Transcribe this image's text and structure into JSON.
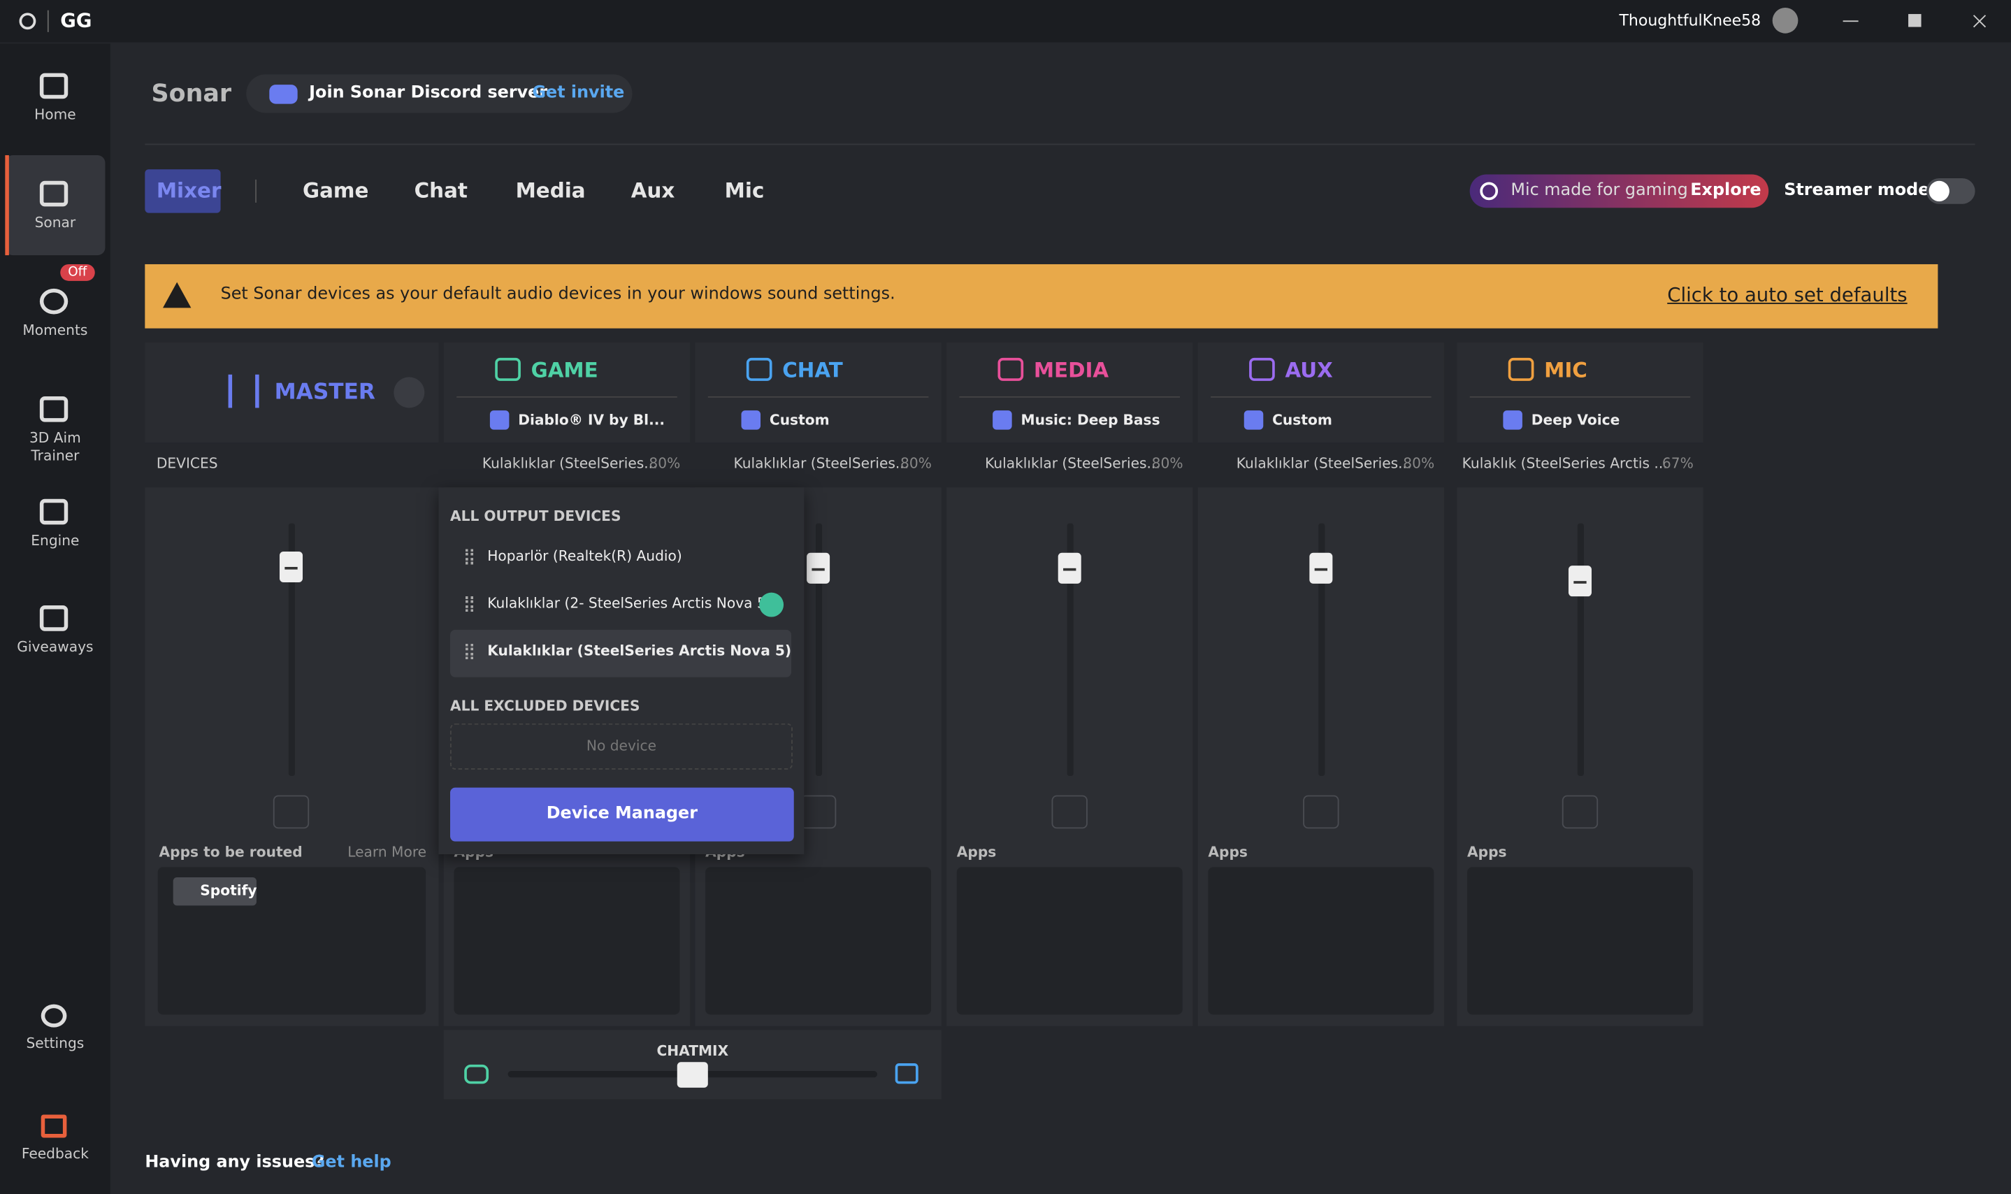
{
  "titlebar": {
    "logo": "GG",
    "username": "ThoughtfulKnee58"
  },
  "sidebar": {
    "items": [
      {
        "label": "Home"
      },
      {
        "label": "Sonar"
      },
      {
        "label": "Moments",
        "badge": "Off"
      },
      {
        "label": "3D Aim Trainer"
      },
      {
        "label": "Engine"
      },
      {
        "label": "Giveaways"
      }
    ],
    "bottom": [
      {
        "label": "Settings"
      },
      {
        "label": "Feedback"
      }
    ]
  },
  "header": {
    "title": "Sonar",
    "discord": "Join Sonar Discord server",
    "invite": "Get invite"
  },
  "tabs": [
    "Mixer",
    "Game",
    "Chat",
    "Media",
    "Aux",
    "Mic"
  ],
  "promo": {
    "text": "Mic made for gaming",
    "link": "Explore"
  },
  "streamer": "Streamer mode",
  "banner": {
    "text": "Set Sonar devices as your default audio devices in your windows sound settings.",
    "action": "Click to auto set defaults"
  },
  "master": {
    "title": "MASTER",
    "devices_label": "DEVICES",
    "apps_label": "Apps to be routed",
    "learn_more": "Learn More",
    "app": "Spotify"
  },
  "channels": [
    {
      "name": "GAME",
      "color": "#4fd1a5",
      "preset": "Diablo® IV by Bl...",
      "device": "Kulaklıklar (SteelSeries...",
      "volume": "80%",
      "apps": "Apps"
    },
    {
      "name": "CHAT",
      "color": "#4aa3f0",
      "preset": "Custom",
      "device": "Kulaklıklar (SteelSeries...",
      "volume": "80%",
      "apps": "Apps"
    },
    {
      "name": "MEDIA",
      "color": "#e8509a",
      "preset": "Music: Deep Bass",
      "device": "Kulaklıklar (SteelSeries...",
      "volume": "80%",
      "apps": "Apps"
    },
    {
      "name": "AUX",
      "color": "#9b6cf0",
      "preset": "Custom",
      "device": "Kulaklıklar (SteelSeries...",
      "volume": "80%",
      "apps": "Apps"
    },
    {
      "name": "MIC",
      "color": "#f0a040",
      "preset": "Deep Voice",
      "device": "Kulaklık (SteelSeries Arctis ...",
      "volume": "67%",
      "apps": "Apps"
    }
  ],
  "dropdown": {
    "output_title": "ALL OUTPUT DEVICES",
    "devices": [
      "Hoparlör (Realtek(R) Audio)",
      "Kulaklıklar (2- SteelSeries Arctis Nova 5)",
      "Kulaklıklar (SteelSeries Arctis Nova 5)"
    ],
    "excluded_title": "ALL EXCLUDED DEVICES",
    "empty": "No device",
    "button": "Device Manager"
  },
  "chatmix": "CHATMIX",
  "footer": {
    "question": "Having any issues?",
    "link": "Get help"
  }
}
